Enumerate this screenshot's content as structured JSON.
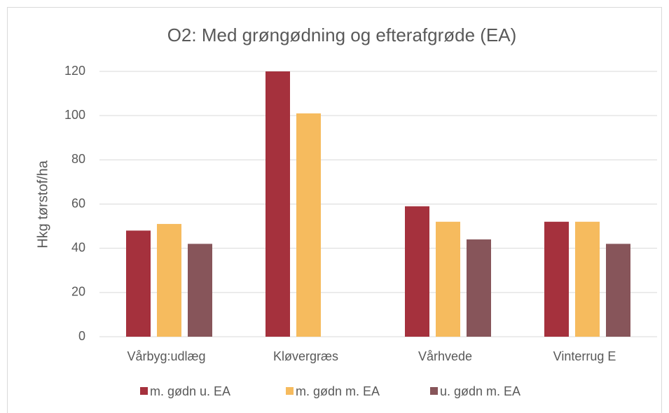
{
  "chart_data": {
    "type": "bar",
    "title": "O2: Med grøngødning og efterafgrøde (EA)",
    "y_label": "Hkg tørstof/ha",
    "categories": [
      "Vårbyg:udlæg",
      "Kløvergræs",
      "Vårhvede",
      "Vinterrug E"
    ],
    "series": [
      {
        "name": "m. gødn u. EA",
        "color": "#a5313d",
        "values": [
          48,
          120,
          59,
          52
        ]
      },
      {
        "name": "m. gødn m. EA",
        "color": "#f6bb5e",
        "values": [
          51,
          101,
          52,
          52
        ]
      },
      {
        "name": "u. gødn m. EA",
        "color": "#87555a",
        "values": [
          42,
          null,
          44,
          42
        ]
      }
    ],
    "ylim": [
      0,
      120
    ],
    "yticks": [
      0,
      20,
      40,
      60,
      80,
      100,
      120
    ],
    "grid": true,
    "legend": "bottom"
  }
}
